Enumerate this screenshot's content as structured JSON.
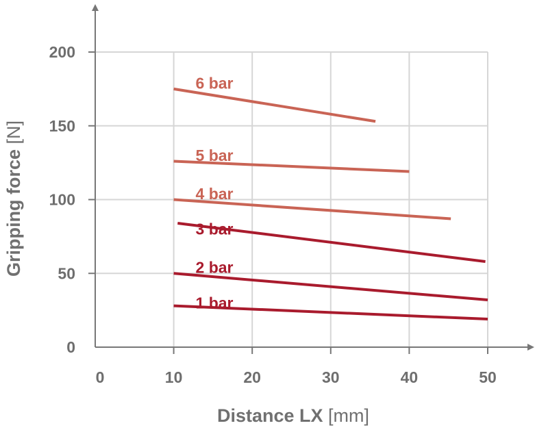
{
  "chart_data": {
    "type": "line",
    "title": "",
    "xlabel": "Distance LX",
    "xunit": "[mm]",
    "ylabel": "Gripping force",
    "yunit": "[N]",
    "xlim": [
      0,
      55
    ],
    "ylim": [
      0,
      220
    ],
    "xticks": [
      0,
      10,
      20,
      30,
      40,
      50
    ],
    "yticks": [
      0,
      50,
      100,
      150,
      200
    ],
    "grid": true,
    "legend": "inline labels",
    "series": [
      {
        "name": "6 bar",
        "color": "#c96455",
        "label_at": [
          12,
          179
        ],
        "x": [
          10,
          35.7
        ],
        "y": [
          175,
          153
        ]
      },
      {
        "name": "5 bar",
        "color": "#c96455",
        "label_at": [
          12,
          130
        ],
        "x": [
          10,
          40
        ],
        "y": [
          126,
          119
        ]
      },
      {
        "name": "4 bar",
        "color": "#c96455",
        "label_at": [
          12,
          104
        ],
        "x": [
          10,
          45.3
        ],
        "y": [
          100,
          87
        ]
      },
      {
        "name": "3 bar",
        "color": "#a91b2d",
        "label_at": [
          12,
          80
        ],
        "x": [
          10.5,
          49.7
        ],
        "y": [
          84,
          58
        ]
      },
      {
        "name": "2 bar",
        "color": "#a91b2d",
        "label_at": [
          12,
          54
        ],
        "x": [
          10,
          50
        ],
        "y": [
          50,
          32
        ]
      },
      {
        "name": "1 bar",
        "color": "#a91b2d",
        "label_at": [
          12,
          30
        ],
        "x": [
          10,
          50
        ],
        "y": [
          28,
          19
        ]
      }
    ]
  }
}
